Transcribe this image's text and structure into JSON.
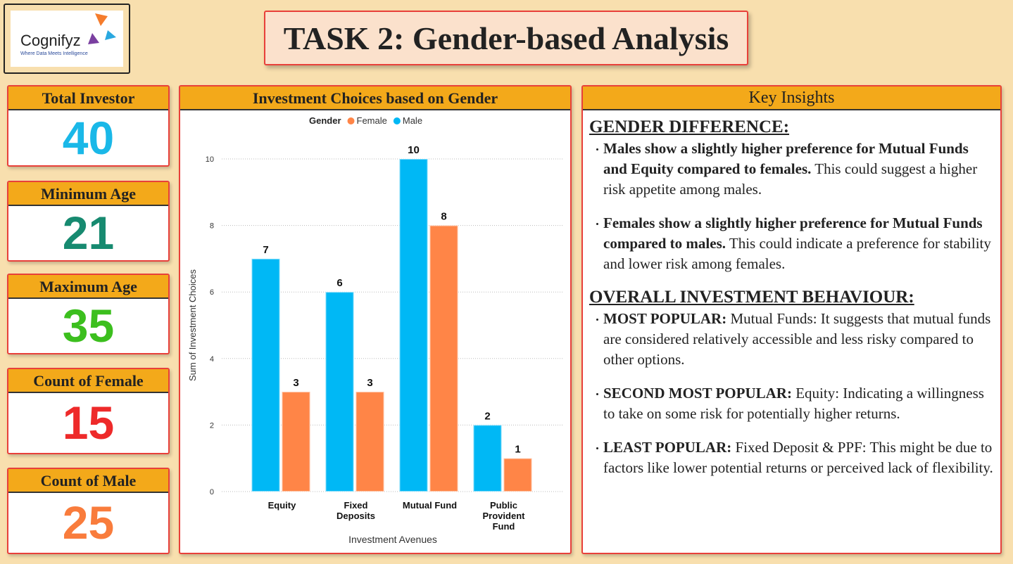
{
  "logo": {
    "name": "Cognifyz",
    "tagline": "Where Data Meets Intelligence"
  },
  "title": "TASK 2: Gender-based Analysis",
  "kpis": [
    {
      "label": "Total Investor",
      "value": 40,
      "color": "#1ab8e8"
    },
    {
      "label": "Minimum Age",
      "value": 21,
      "color": "#178a70"
    },
    {
      "label": "Maximum Age",
      "value": 35,
      "color": "#3cbf1e"
    },
    {
      "label": "Count of Female",
      "value": 15,
      "color": "#ee2a2a"
    },
    {
      "label": "Count of Male",
      "value": 25,
      "color": "#f97c3c"
    }
  ],
  "chart_data": {
    "type": "bar",
    "title": "Investment Choices based on Gender",
    "legend_title": "Gender",
    "categories": [
      "Equity",
      "Fixed Deposits",
      "Mutual Fund",
      "Public Provident Fund"
    ],
    "series": [
      {
        "name": "Female",
        "color": "#ff8547",
        "values": [
          3,
          3,
          8,
          1
        ]
      },
      {
        "name": "Male",
        "color": "#00b8f5",
        "values": [
          7,
          6,
          10,
          2
        ]
      }
    ],
    "ylim": [
      0,
      10
    ],
    "yticks": [
      0,
      2,
      4,
      6,
      8,
      10
    ],
    "grid": true,
    "xlabel": "Investment Avenues",
    "ylabel": "Sum of Investment Choices"
  },
  "insights": {
    "title": "Key Insights",
    "sections": [
      {
        "heading": "GENDER DIFFERENCE:",
        "items": [
          {
            "bold": "Males show a slightly higher preference for Mutual Funds and Equity compared to females.",
            "text": "This could suggest a higher risk appetite among males."
          },
          {
            "bold": "Females show a slightly higher preference for Mutual Funds compared to males.",
            "text": "This could indicate a preference for stability and lower risk among females."
          }
        ]
      },
      {
        "heading": "OVERALL INVESTMENT BEHAVIOUR:",
        "items": [
          {
            "bold": "MOST POPULAR:",
            "text": "Mutual Funds: It suggests that mutual funds are considered relatively accessible and less risky compared to other options."
          },
          {
            "bold": "SECOND MOST POPULAR:",
            "text": "Equity: Indicating a willingness to take on some risk for potentially higher returns."
          },
          {
            "bold": "LEAST POPULAR:",
            "text": "Fixed Deposit & PPF: This might be due to factors like lower potential returns or perceived lack of flexibility."
          }
        ]
      }
    ]
  }
}
